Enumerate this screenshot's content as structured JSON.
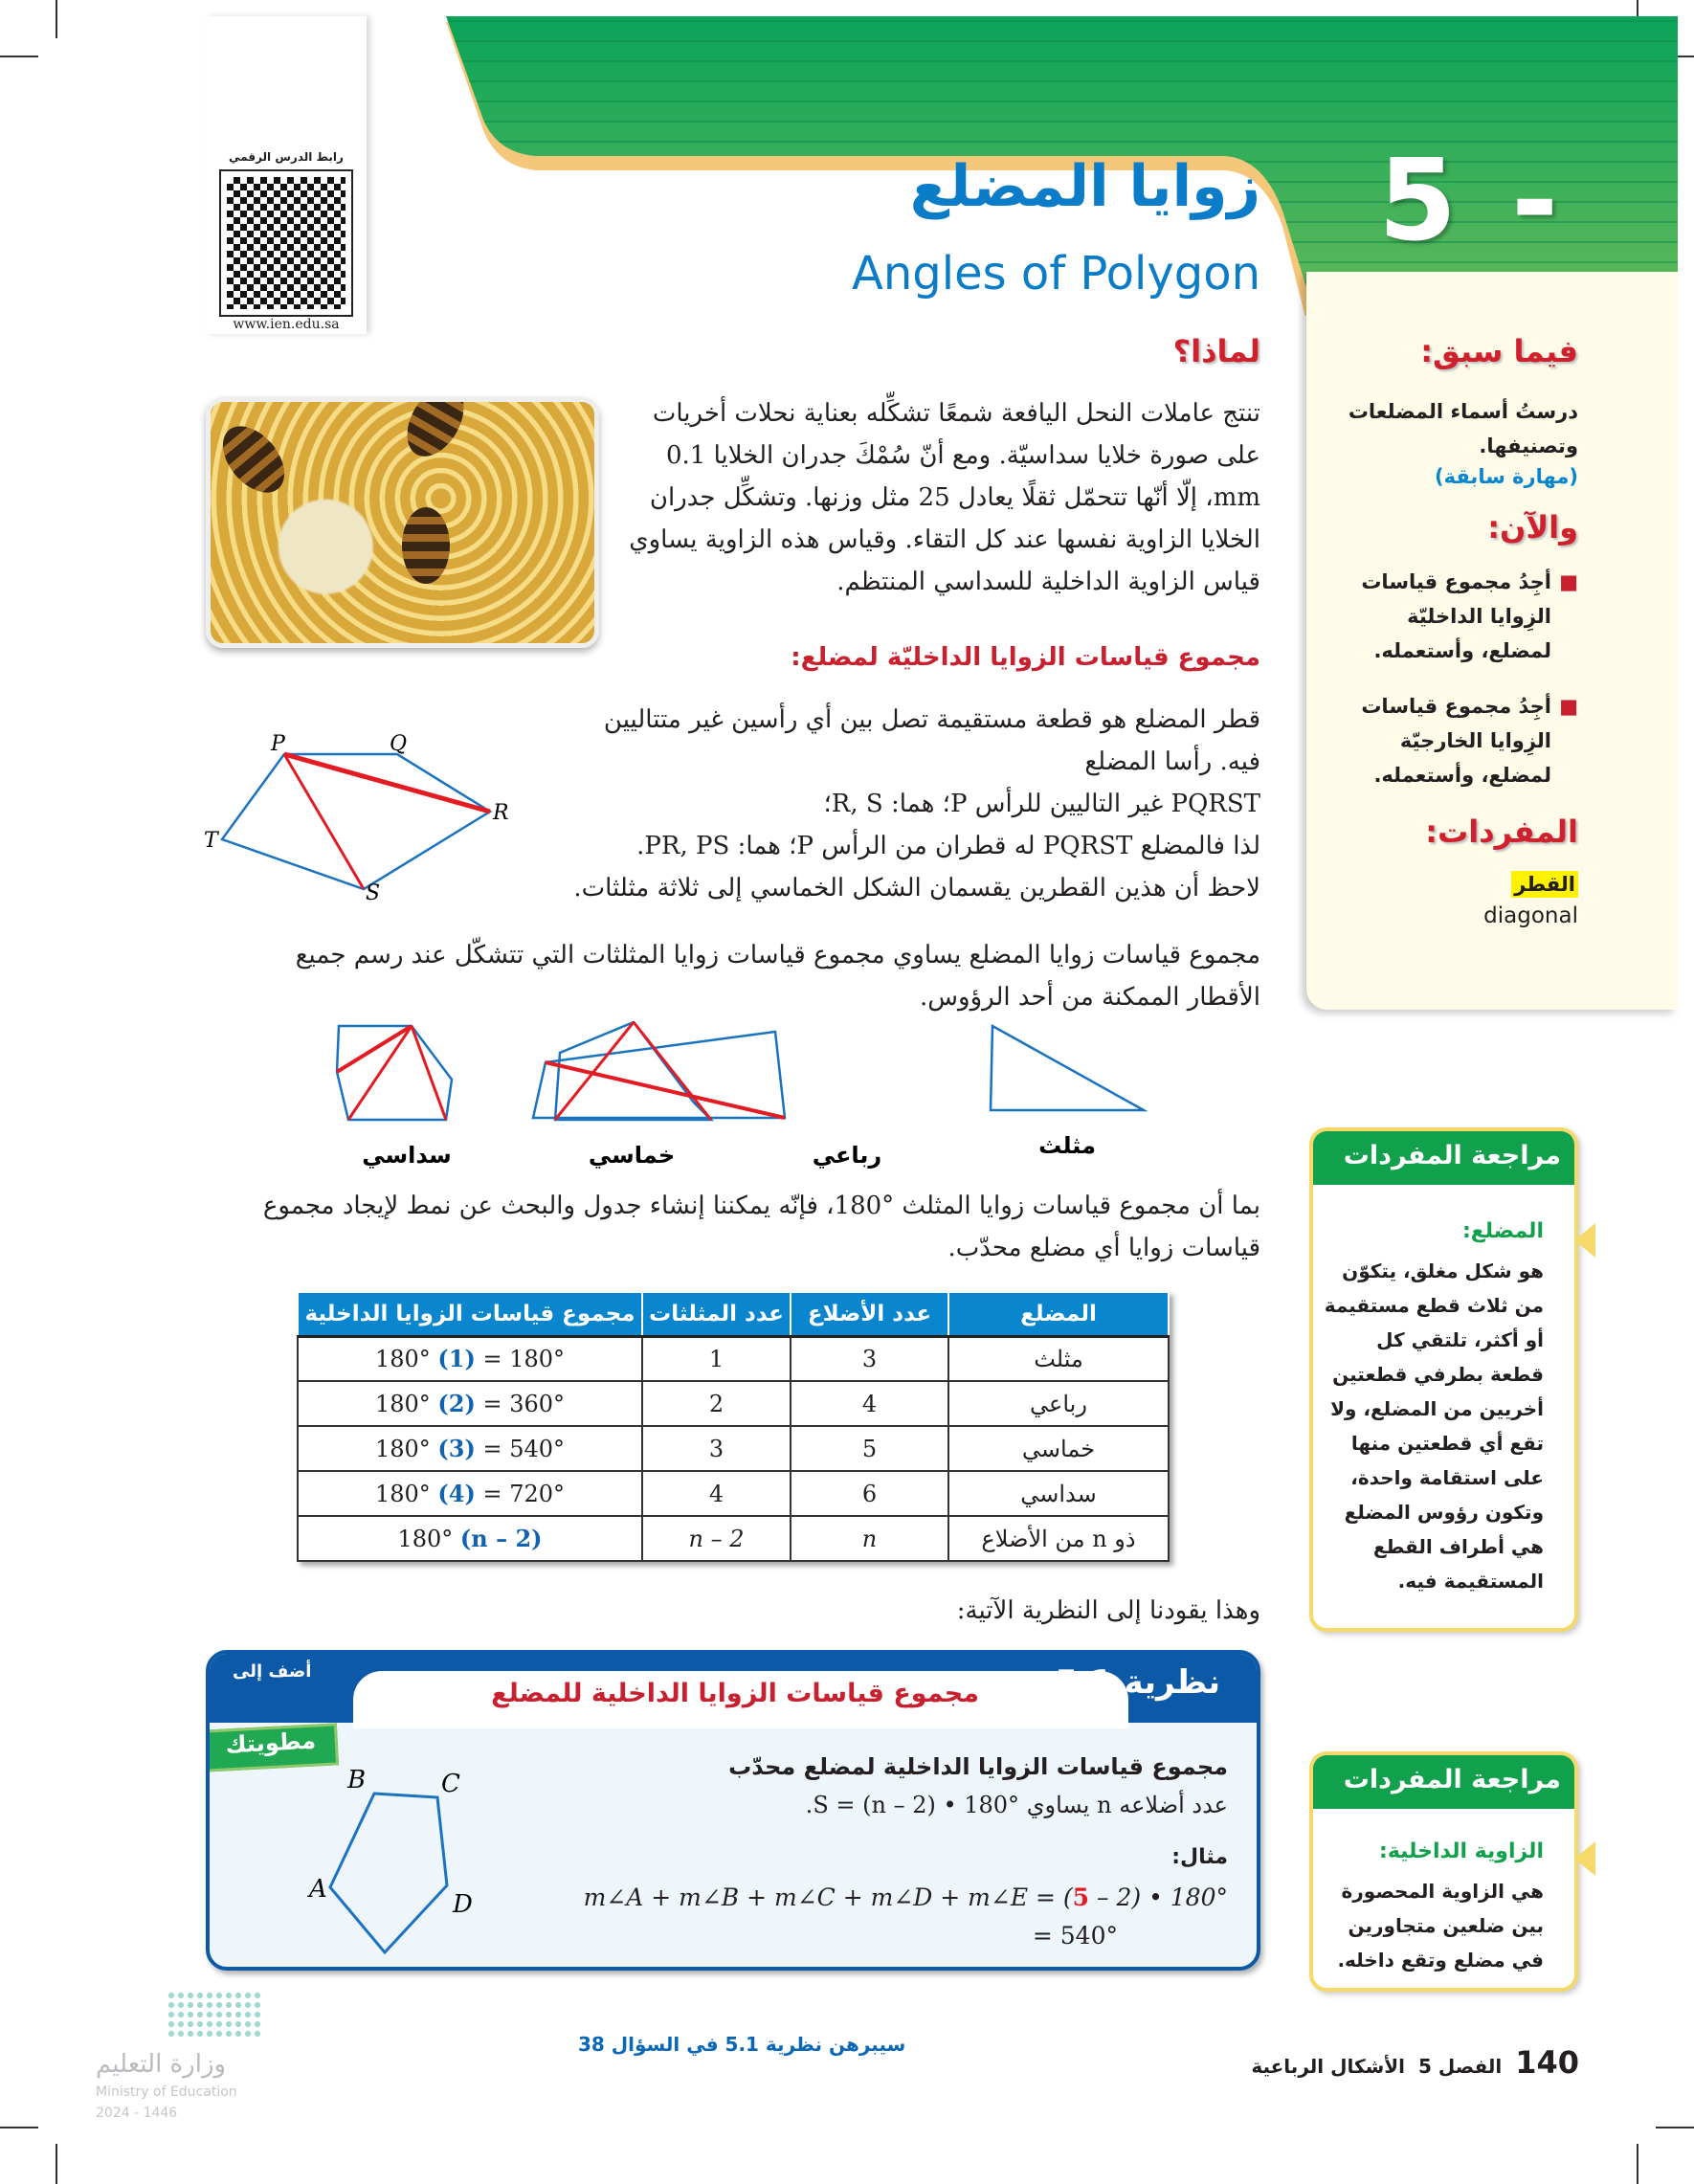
{
  "header": {
    "qr_label": "رابط الدرس الرقمي",
    "qr_url": "www.ien.edu.sa",
    "lesson_number": "5 - 1",
    "title_ar": "زوايا المضلع",
    "title_en": "Angles of Polygon"
  },
  "sidebar": {
    "previous_heading": "فيما سبق:",
    "previous_text": "درستُ أسماء المضلعات وتصنيفها.",
    "previous_skill": "(مهارة سابقة)",
    "now_heading": "والآن:",
    "now_items": [
      "أجِدُ مجموع قياسات الزِوايا الداخليّة لمضلع، وأستعمله.",
      "أجِدُ مجموع قياسات الزِوايا الخارجيّة لمضلع، وأستعمله."
    ],
    "vocab_heading": "المفردات:",
    "vocab_term_ar": "القطر",
    "vocab_term_en": "diagonal"
  },
  "why": {
    "heading": "لماذا؟",
    "text": "تنتج عاملات النحل اليافعة شمعًا تشكِّله بعناية نحلات أخريات على صورة خلايا سداسيّة. ومع أنّ سُمْكَ جدران الخلايا 0.1 mm، إلّا أنّها تتحمّل ثقلًا يعادل 25 مثل وزنها. وتشكِّل جدران الخلايا الزاوية نفسها عند كل التقاء. وقياس هذه الزاوية يساوي قياس الزاوية الداخلية للسداسي المنتظم."
  },
  "section": {
    "heading": "مجموع قياسات الزوايا الداخليّة لمضلع:",
    "p1": "قطر المضلع هو قطعة مستقيمة تصل بين أي رأسين غير متتاليين فيه. رأسا المضلع",
    "p1_bold": "PQRST غير التاليين للرأس P؛ هما: R, S؛",
    "p2": "لذا فالمضلع PQRST له قطران من الرأس P؛ هما: PR, PS.",
    "p3": "لاحظ أن هذين القطرين يقسمان الشكل الخماسي إلى ثلاثة مثلثات.",
    "vertices": [
      "P",
      "Q",
      "R",
      "S",
      "T"
    ],
    "p4": "مجموع قياسات زوايا المضلع يساوي مجموع قياسات زوايا المثلثات التي تتشكّل عند رسم جميع الأقطار الممكنة من أحد الرؤوس.",
    "shapes": [
      "مثلث",
      "رباعي",
      "خماسي",
      "سداسي"
    ],
    "p5": "بما أن مجموع قياسات زوايا المثلث °180، فإنّه يمكننا إنشاء جدول والبحث عن نمط لإيجاد مجموع قياسات زوايا أي مضلع محدّب.",
    "p6": "وهذا يقودنا إلى النظرية الآتية:"
  },
  "table": {
    "headers": [
      "المضلع",
      "عدد الأضلاع",
      "عدد المثلثات",
      "مجموع قياسات الزوايا الداخلية"
    ],
    "rows": [
      {
        "name": "مثلث",
        "sides": "3",
        "triangles": "1",
        "pre": "180° ",
        "mult": "(1)",
        "post": " = 180°"
      },
      {
        "name": "رباعي",
        "sides": "4",
        "triangles": "2",
        "pre": "180° ",
        "mult": "(2)",
        "post": " = 360°"
      },
      {
        "name": "خماسي",
        "sides": "5",
        "triangles": "3",
        "pre": "180° ",
        "mult": "(3)",
        "post": " = 540°"
      },
      {
        "name": "سداسي",
        "sides": "6",
        "triangles": "4",
        "pre": "180° ",
        "mult": "(4)",
        "post": " = 720°"
      },
      {
        "name": "ذو n من الأضلاع",
        "sides": "n",
        "triangles": "n – 2",
        "pre": "180° ",
        "mult": "(n – 2)",
        "post": ""
      }
    ]
  },
  "theorem": {
    "label": "نظرية 5.1",
    "title": "مجموع قياسات الزوايا الداخلية للمضلع",
    "add_to": "أضف إلى",
    "foldable": "مطويتك",
    "line1": "مجموع قياسات الزوايا الداخلية لمضلع محدّب",
    "line2": "عدد أضلاعه n يساوي S = (n – 2) • 180°.",
    "example_label": "مثال:",
    "example_lhs": "m∠A + m∠B + m∠C + m∠D + m∠E = (",
    "example_red": "5",
    "example_rhs": " – 2) • 180°",
    "example_result": "= 540°",
    "vertices": [
      "A",
      "B",
      "C",
      "D",
      "E"
    ]
  },
  "vocab_review": [
    {
      "heading": "مراجعة المفردات",
      "term": "المضلع:",
      "text": "هو شكل مغلق، يتكوّن من ثلاث قطع مستقيمة أو أكثر، تلتقي كل قطعة بطرفي قطعتين أخريين من المضلع، ولا تقع أي قطعتين منها على استقامة واحدة، وتكون رؤوس المضلع هي أطراف القطع المستقيمة فيه."
    },
    {
      "heading": "مراجعة المفردات",
      "term": "الزاوية الداخلية:",
      "text": "هي الزاوية المحصورة بين ضلعين متجاورين في مضلع وتقع داخله."
    }
  ],
  "footer": {
    "page_number": "140",
    "chapter": "الفصل 5",
    "chapter_title": "الأشكال الرباعية",
    "note": "سيبرهن نظرية 5.1 في السؤال 38",
    "ministry_ar": "وزارة التعليم",
    "ministry_en": "Ministry of Education",
    "year": "2024 - 1446"
  },
  "colors": {
    "green": "#11a04b",
    "blue": "#0a7cc8",
    "red": "#d0202c",
    "cream": "#fefbe9"
  }
}
